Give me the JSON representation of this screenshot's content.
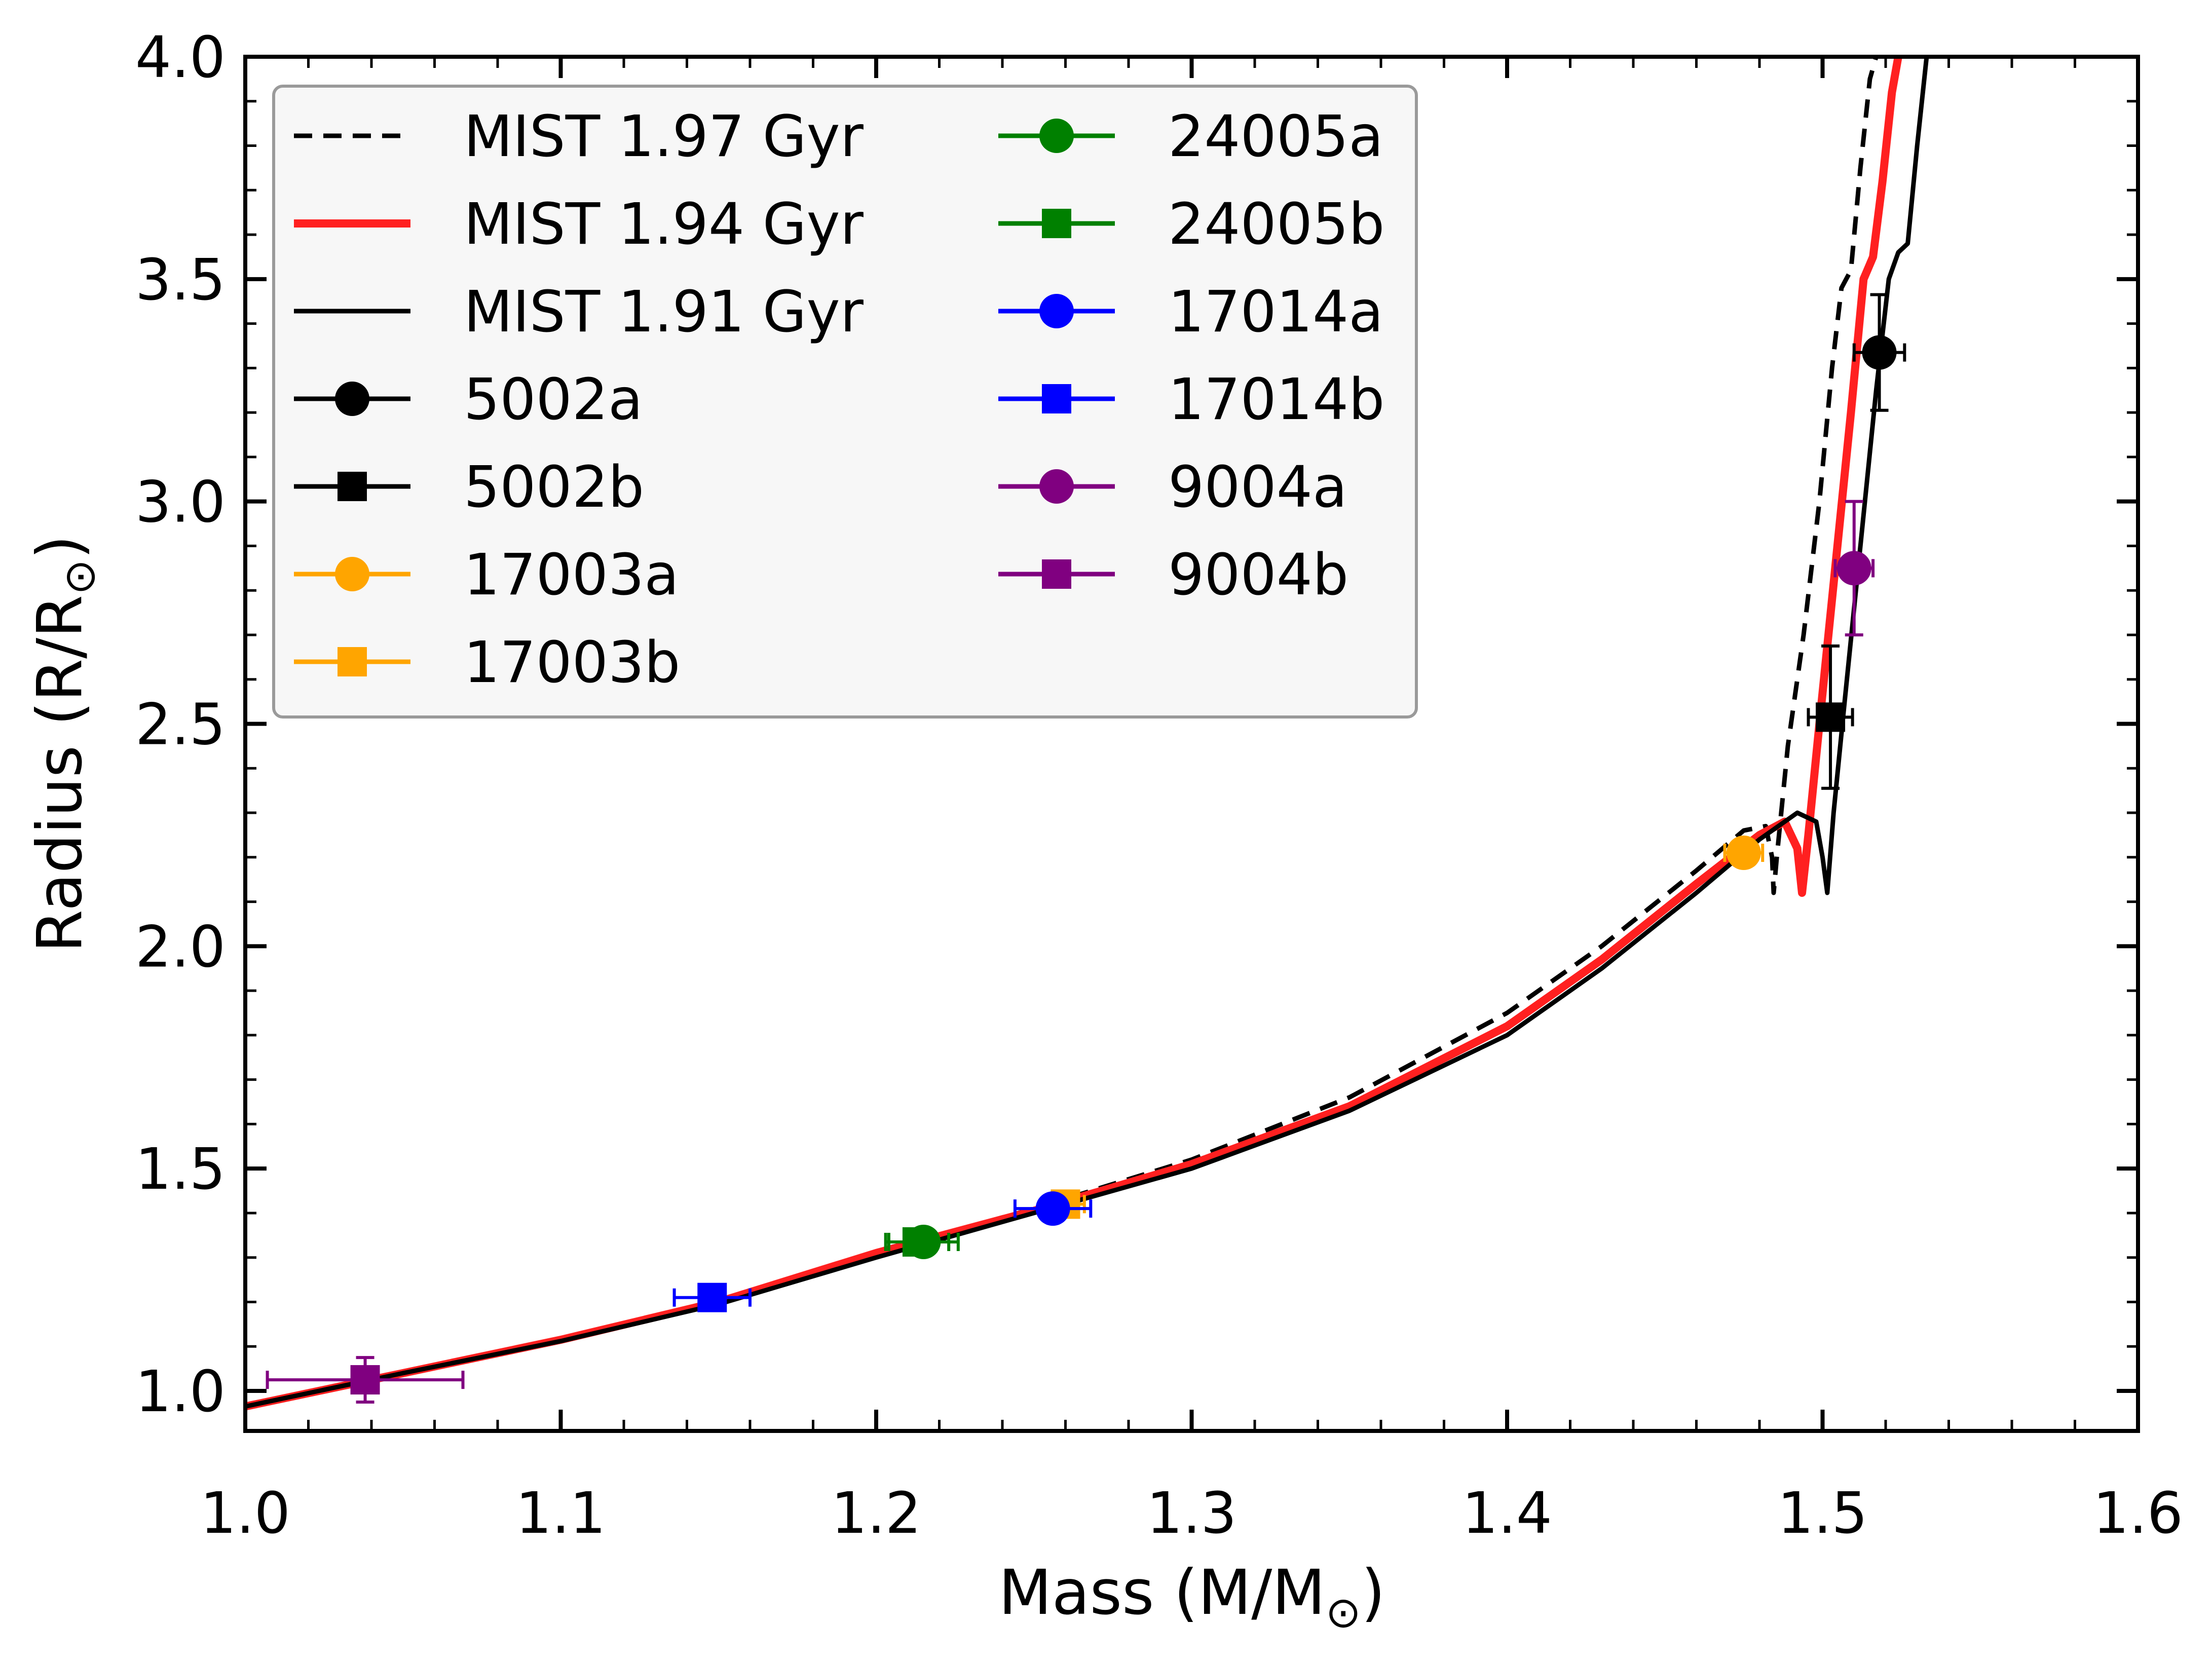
{
  "chart_data": {
    "type": "scatter",
    "xlabel": "Mass (M/M",
    "xlabel_end": ")",
    "ylabel": "Radius (R/R",
    "ylabel_end": ")",
    "solar_symbol": "⊙",
    "xlim": [
      1.0,
      1.6
    ],
    "ylim": [
      0.91,
      4.0
    ],
    "xticks": [
      1.0,
      1.1,
      1.2,
      1.3,
      1.4,
      1.5,
      1.6
    ],
    "xtick_labels": [
      "1.0",
      "1.1",
      "1.2",
      "1.3",
      "1.4",
      "1.5",
      "1.6"
    ],
    "yticks": [
      1.0,
      1.5,
      2.0,
      2.5,
      3.0,
      3.5,
      4.0
    ],
    "ytick_labels": [
      "1.0",
      "1.5",
      "2.0",
      "2.5",
      "3.0",
      "3.5",
      "4.0"
    ],
    "grid": false,
    "legend_position": "top-left",
    "isochrones": [
      {
        "name": "MIST 1.97 Gyr",
        "color": "#000000",
        "dash": true,
        "width": "thin",
        "points": [
          [
            1.0,
            0.965
          ],
          [
            1.05,
            1.04
          ],
          [
            1.1,
            1.115
          ],
          [
            1.15,
            1.2
          ],
          [
            1.2,
            1.31
          ],
          [
            1.25,
            1.41
          ],
          [
            1.3,
            1.52
          ],
          [
            1.35,
            1.66
          ],
          [
            1.4,
            1.85
          ],
          [
            1.43,
            2.0
          ],
          [
            1.46,
            2.17
          ],
          [
            1.475,
            2.26
          ],
          [
            1.482,
            2.27
          ],
          [
            1.484,
            2.2
          ],
          [
            1.4845,
            2.12
          ],
          [
            1.4855,
            2.2
          ],
          [
            1.489,
            2.45
          ],
          [
            1.494,
            2.7
          ],
          [
            1.499,
            3.0
          ],
          [
            1.503,
            3.3
          ],
          [
            1.506,
            3.48
          ],
          [
            1.509,
            3.52
          ],
          [
            1.512,
            3.75
          ],
          [
            1.515,
            3.95
          ],
          [
            1.517,
            4.0
          ]
        ]
      },
      {
        "name": "MIST 1.94 Gyr",
        "color": "#ff2020",
        "dash": false,
        "width": "thick",
        "points": [
          [
            1.0,
            0.965
          ],
          [
            1.05,
            1.04
          ],
          [
            1.1,
            1.115
          ],
          [
            1.15,
            1.2
          ],
          [
            1.2,
            1.31
          ],
          [
            1.25,
            1.405
          ],
          [
            1.3,
            1.51
          ],
          [
            1.35,
            1.64
          ],
          [
            1.4,
            1.82
          ],
          [
            1.43,
            1.97
          ],
          [
            1.46,
            2.14
          ],
          [
            1.48,
            2.25
          ],
          [
            1.488,
            2.28
          ],
          [
            1.492,
            2.22
          ],
          [
            1.4935,
            2.12
          ],
          [
            1.4955,
            2.25
          ],
          [
            1.499,
            2.5
          ],
          [
            1.504,
            2.85
          ],
          [
            1.509,
            3.2
          ],
          [
            1.513,
            3.5
          ],
          [
            1.516,
            3.55
          ],
          [
            1.519,
            3.72
          ],
          [
            1.522,
            3.92
          ],
          [
            1.524,
            4.0
          ]
        ]
      },
      {
        "name": "MIST 1.91 Gyr",
        "color": "#000000",
        "dash": false,
        "width": "thin",
        "points": [
          [
            1.0,
            0.965
          ],
          [
            1.05,
            1.04
          ],
          [
            1.1,
            1.112
          ],
          [
            1.15,
            1.195
          ],
          [
            1.2,
            1.3
          ],
          [
            1.25,
            1.4
          ],
          [
            1.3,
            1.5
          ],
          [
            1.35,
            1.63
          ],
          [
            1.4,
            1.8
          ],
          [
            1.43,
            1.95
          ],
          [
            1.46,
            2.12
          ],
          [
            1.48,
            2.24
          ],
          [
            1.492,
            2.3
          ],
          [
            1.498,
            2.28
          ],
          [
            1.5,
            2.2
          ],
          [
            1.5015,
            2.12
          ],
          [
            1.5035,
            2.3
          ],
          [
            1.507,
            2.55
          ],
          [
            1.512,
            2.9
          ],
          [
            1.517,
            3.25
          ],
          [
            1.521,
            3.5
          ],
          [
            1.524,
            3.56
          ],
          [
            1.527,
            3.58
          ],
          [
            1.53,
            3.8
          ],
          [
            1.533,
            4.0
          ]
        ]
      }
    ],
    "series": [
      {
        "name": "5002a",
        "marker": "circle",
        "color": "#000000",
        "x": 1.518,
        "y": 3.335,
        "xerr": 0.008,
        "yerr": 0.13
      },
      {
        "name": "5002b",
        "marker": "square",
        "color": "#000000",
        "x": 1.5025,
        "y": 2.515,
        "xerr": 0.007,
        "yerr": 0.16
      },
      {
        "name": "17003a",
        "marker": "circle",
        "color": "#ffa500",
        "x": 1.475,
        "y": 2.21,
        "xerr": 0.006,
        "yerr": 0.01
      },
      {
        "name": "17003b",
        "marker": "square",
        "color": "#ffa500",
        "x": 1.26,
        "y": 1.42,
        "xerr": 0.006,
        "yerr": 0.01
      },
      {
        "name": "24005a",
        "marker": "circle",
        "color": "#008000",
        "x": 1.215,
        "y": 1.335,
        "xerr": 0.011,
        "yerr": 0.01
      },
      {
        "name": "24005b",
        "marker": "square",
        "color": "#008000",
        "x": 1.213,
        "y": 1.335,
        "xerr": 0.01,
        "yerr": 0.01
      },
      {
        "name": "17014a",
        "marker": "circle",
        "color": "#0000ff",
        "x": 1.256,
        "y": 1.41,
        "xerr": 0.012,
        "yerr": 0.01
      },
      {
        "name": "17014b",
        "marker": "square",
        "color": "#0000ff",
        "x": 1.148,
        "y": 1.21,
        "xerr": 0.012,
        "yerr": 0.01
      },
      {
        "name": "9004a",
        "marker": "circle",
        "color": "#800080",
        "x": 1.51,
        "y": 2.85,
        "xerr": 0.006,
        "yerr": 0.15
      },
      {
        "name": "9004b",
        "marker": "square",
        "color": "#800080",
        "x": 1.038,
        "y": 1.025,
        "xerr": 0.031,
        "yerr": 0.05
      }
    ]
  }
}
